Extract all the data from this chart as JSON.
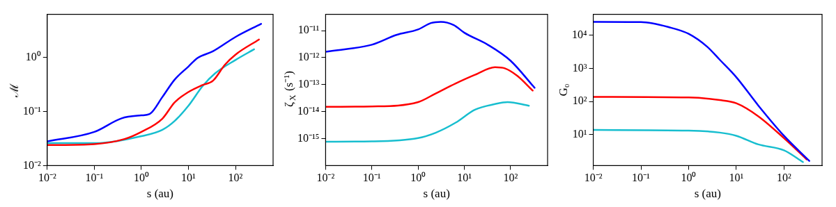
{
  "chart_data": [
    {
      "type": "line",
      "xlabel": "s (au)",
      "ylabel": "ℳ",
      "log": "xy",
      "xlim": [
        0.01,
        630
      ],
      "ylim": [
        0.01,
        6.3
      ],
      "xticks": [
        {
          "value": 0.01,
          "label": "10⁻²"
        },
        {
          "value": 0.1,
          "label": "10⁻¹"
        },
        {
          "value": 1,
          "label": "10⁰"
        },
        {
          "value": 10,
          "label": "10¹"
        },
        {
          "value": 100,
          "label": "10²"
        }
      ],
      "yticks": [
        {
          "value": 0.01,
          "label": "10⁻²"
        },
        {
          "value": 0.1,
          "label": "10⁻¹"
        },
        {
          "value": 1,
          "label": "10⁰"
        }
      ],
      "series": [
        {
          "color": "#0000ff",
          "x": [
            0.01,
            0.1,
            0.38,
            1,
            1.5,
            2.8,
            5.1,
            10,
            15.6,
            33,
            100,
            350
          ],
          "values": [
            0.028,
            0.042,
            0.075,
            0.085,
            0.09,
            0.186,
            0.39,
            0.68,
            0.98,
            1.3,
            2.4,
            4.2
          ]
        },
        {
          "color": "#ff0000",
          "x": [
            0.01,
            0.1,
            0.44,
            1,
            2.8,
            5.1,
            10,
            20,
            33,
            60,
            100,
            315
          ],
          "values": [
            0.024,
            0.025,
            0.031,
            0.042,
            0.074,
            0.148,
            0.23,
            0.31,
            0.37,
            0.74,
            1.13,
            2.15
          ]
        },
        {
          "color": "#17becf",
          "x": [
            0.01,
            0.1,
            1,
            2.8,
            5.1,
            10,
            20,
            37,
            100,
            249
          ],
          "values": [
            0.026,
            0.026,
            0.035,
            0.046,
            0.067,
            0.128,
            0.295,
            0.51,
            0.9,
            1.42
          ]
        }
      ]
    },
    {
      "type": "line",
      "xlabel": "s (au)",
      "ylabel": "ζ$_{X}$ (s⁻¹)",
      "log": "xy",
      "xlim": [
        0.01,
        630
      ],
      "ylim": [
        1e-16,
        4e-11
      ],
      "xticks": [
        {
          "value": 0.01,
          "label": "10⁻²"
        },
        {
          "value": 0.1,
          "label": "10⁻¹"
        },
        {
          "value": 1,
          "label": "10⁰"
        },
        {
          "value": 10,
          "label": "10¹"
        },
        {
          "value": 100,
          "label": "10²"
        }
      ],
      "yticks": [
        {
          "value": 1e-15,
          "label": "10⁻¹⁵"
        },
        {
          "value": 1e-14,
          "label": "10⁻¹⁴"
        },
        {
          "value": 1e-13,
          "label": "10⁻¹³"
        },
        {
          "value": 1e-12,
          "label": "10⁻¹²"
        },
        {
          "value": 1e-11,
          "label": "10⁻¹¹"
        }
      ],
      "series": [
        {
          "color": "#0000ff",
          "x": [
            0.01,
            0.1,
            0.34,
            1,
            1.9,
            3.1,
            5.9,
            10,
            32,
            100,
            330
          ],
          "values": [
            1.65e-12,
            3e-12,
            6.9e-12,
            1.1e-11,
            1.9e-11,
            2.1e-11,
            1.6e-11,
            8.3e-12,
            3e-12,
            7.6e-13,
            7.6e-14
          ]
        },
        {
          "color": "#ff0000",
          "x": [
            0.01,
            0.1,
            1,
            2.4,
            6.5,
            17,
            46,
            75,
            140,
            300
          ],
          "values": [
            1.5e-14,
            1.55e-14,
            2.25e-14,
            4.7e-14,
            1.1e-13,
            2.3e-13,
            4.4e-13,
            4e-13,
            2.1e-13,
            6e-14
          ]
        },
        {
          "color": "#17becf",
          "x": [
            0.01,
            0.1,
            1,
            2.4,
            6.5,
            17,
            46,
            86,
            248
          ],
          "values": [
            7.7e-16,
            7.9e-16,
            1.05e-15,
            1.65e-15,
            3.9e-15,
            1.18e-14,
            1.9e-14,
            2.25e-14,
            1.65e-14
          ]
        }
      ]
    },
    {
      "type": "line",
      "xlabel": "s (au)",
      "ylabel": "G₀",
      "log": "xy",
      "xlim": [
        0.01,
        630
      ],
      "ylim": [
        1.17,
        43000
      ],
      "xticks": [
        {
          "value": 0.01,
          "label": "10⁻²"
        },
        {
          "value": 0.1,
          "label": "10⁻¹"
        },
        {
          "value": 1,
          "label": "10⁰"
        },
        {
          "value": 10,
          "label": "10¹"
        },
        {
          "value": 100,
          "label": "10²"
        }
      ],
      "yticks": [
        {
          "value": 10,
          "label": "10¹"
        },
        {
          "value": 100,
          "label": "10²"
        },
        {
          "value": 1000,
          "label": "10³"
        },
        {
          "value": 10000,
          "label": "10⁴"
        }
      ],
      "series": [
        {
          "color": "#0000ff",
          "x": [
            0.01,
            0.1,
            0.39,
            1,
            2.46,
            4.5,
            10,
            29,
            100,
            340
          ],
          "values": [
            25500,
            25000,
            17500,
            11100,
            4500,
            1830,
            545,
            76,
            9.3,
            1.62
          ]
        },
        {
          "color": "#ff0000",
          "x": [
            0.01,
            1,
            4.5,
            10,
            29,
            100,
            300
          ],
          "values": [
            139,
            133,
            111,
            89,
            36,
            7.9,
            1.8
          ]
        },
        {
          "color": "#17becf",
          "x": [
            0.01,
            1,
            4.5,
            10,
            29,
            100,
            250
          ],
          "values": [
            13.9,
            13.3,
            11.6,
            9.3,
            5.1,
            3.4,
            1.5
          ]
        }
      ]
    }
  ]
}
